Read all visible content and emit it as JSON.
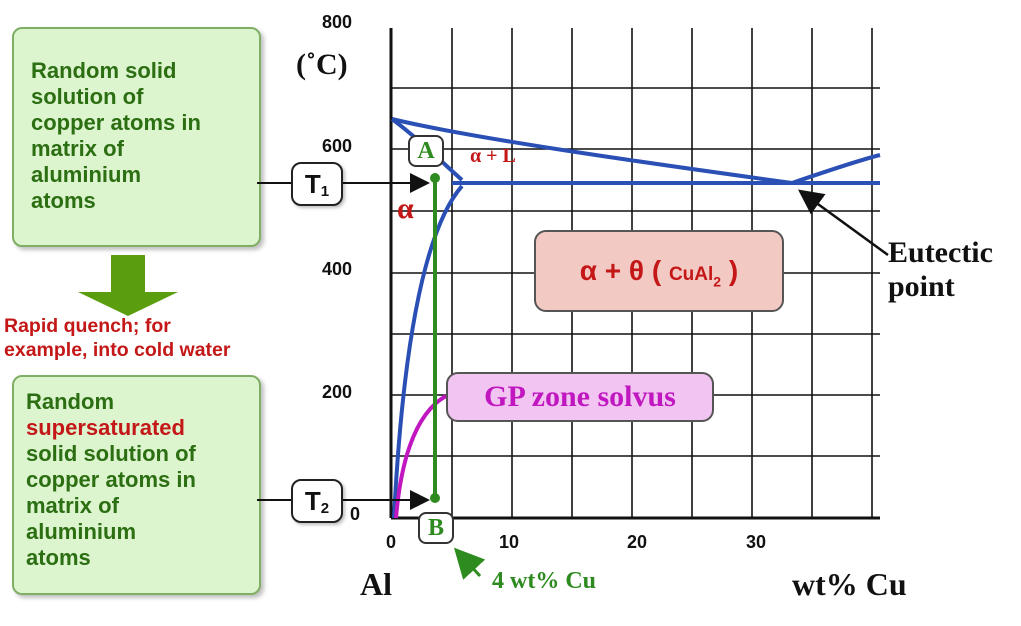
{
  "left_panel": {
    "top_box_lines": [
      "Random solid",
      "solution of",
      "copper atoms in",
      "matrix of",
      "aluminium",
      "atoms"
    ],
    "quench_lines": [
      "Rapid quench; for",
      "example, into cold water"
    ],
    "bottom_box": {
      "line1": "Random",
      "line2_highlight": "supersaturated",
      "rest": [
        "solid solution of",
        "copper atoms in",
        "matrix of",
        "aluminium",
        "atoms"
      ]
    }
  },
  "temps": {
    "t1": {
      "letter": "T",
      "sub": "1"
    },
    "t2": {
      "letter": "T",
      "sub": "2"
    }
  },
  "diagram": {
    "y_unit": "(˚C)",
    "y_ticks": [
      "800",
      "600",
      "400",
      "200",
      "0"
    ],
    "x_ticks": [
      "0",
      "10",
      "20",
      "30"
    ],
    "x_left_label": "Al",
    "x_right_label": "wt% Cu",
    "point_a": "A",
    "point_b": "B",
    "alpha_label": "α",
    "alpha_liquid_label": "α + L",
    "two_phase": {
      "main": "α + θ (",
      "formula_main": "CuAl",
      "formula_sub": "2",
      "close": ")"
    },
    "gp_solvus": "GP zone solvus",
    "eutectic_lines": [
      "Eutectic",
      "point"
    ],
    "composition_label": "4 wt% Cu"
  },
  "colors": {
    "box_fill": "#ddf5cf",
    "box_text": "#2c6e12",
    "quench_red": "#c41818",
    "phase_line_blue": "#2a4fb5",
    "composition_green": "#2e8b1f",
    "gp_magenta": "#c017c0",
    "arrow_green": "#5a9e10",
    "theta_fill": "#f3c9c4",
    "gp_fill": "#f1c4f1"
  }
}
